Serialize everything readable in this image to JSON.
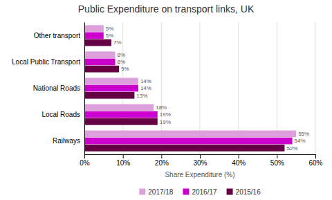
{
  "chart_data": {
    "type": "bar",
    "orientation": "horizontal",
    "title": "Public Expenditure on transport links, UK",
    "categories": [
      "Railways",
      "Local Roads",
      "National Roads",
      "Local Public Transport",
      "Other transport"
    ],
    "series": [
      {
        "name": "2017/18",
        "color": "#dda0dd",
        "values": [
          55,
          18,
          14,
          8,
          5
        ],
        "value_labels": [
          "55%",
          "18%",
          "14%",
          "8%",
          "5%"
        ]
      },
      {
        "name": "2016/17",
        "color": "#cc00cc",
        "values": [
          54,
          19,
          14,
          8,
          5
        ],
        "value_labels": [
          "54%",
          "19%",
          "14%",
          "8%",
          "5%"
        ]
      },
      {
        "name": "2015/16",
        "color": "#660044",
        "values": [
          52,
          19,
          13,
          9,
          7
        ],
        "value_labels": [
          "52%",
          "19%",
          "13%",
          "9%",
          "7%"
        ]
      }
    ],
    "xlabel": "Share Expenditure (%)",
    "xlim": [
      0,
      60
    ],
    "xticks": [
      {
        "value": 0,
        "label": "0%"
      },
      {
        "value": 10,
        "label": "10%"
      },
      {
        "value": 20,
        "label": "20%"
      },
      {
        "value": 30,
        "label": "30%"
      },
      {
        "value": 40,
        "label": "40%"
      },
      {
        "value": 50,
        "label": "50%"
      },
      {
        "value": 60,
        "label": "60%"
      }
    ],
    "grid": true,
    "data_labels": true,
    "legend": "bottom"
  }
}
